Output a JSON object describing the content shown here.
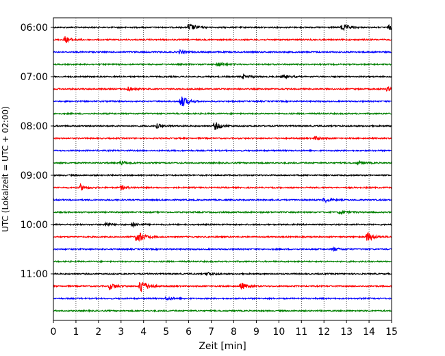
{
  "chart_data": {
    "type": "line",
    "subtype": "helicorder",
    "xlabel": "Zeit  [min]",
    "ylabel": "UTC (Lokalzeit = UTC + 02:00)",
    "xlim": [
      0,
      15
    ],
    "x_ticks": [
      "0",
      "1",
      "2",
      "3",
      "4",
      "5",
      "6",
      "7",
      "8",
      "9",
      "10",
      "11",
      "12",
      "13",
      "14",
      "15"
    ],
    "vertical_grid": "dotted",
    "trace_colors": [
      "#000000",
      "#ff0000",
      "#0000ff",
      "#008000"
    ],
    "trace_interval_min": 15,
    "y_tick_labels": [
      {
        "row": 0,
        "label": "06:00"
      },
      {
        "row": 4,
        "label": "07:00"
      },
      {
        "row": 8,
        "label": "08:00"
      },
      {
        "row": 12,
        "label": "09:00"
      },
      {
        "row": 16,
        "label": "10:00"
      },
      {
        "row": 20,
        "label": "11:00"
      }
    ],
    "traces": [
      {
        "row": 0,
        "color": "#000000",
        "events": [
          {
            "t": 6.0,
            "amp": 2.0
          },
          {
            "t": 12.8,
            "amp": 1.8
          },
          {
            "t": 14.9,
            "amp": 1.2
          }
        ]
      },
      {
        "row": 1,
        "color": "#ff0000",
        "events": [
          {
            "t": 0.5,
            "amp": 1.6
          }
        ]
      },
      {
        "row": 2,
        "color": "#0000ff",
        "events": [
          {
            "t": 5.6,
            "amp": 0.8
          }
        ]
      },
      {
        "row": 3,
        "color": "#008000",
        "events": [
          {
            "t": 7.3,
            "amp": 1.0
          }
        ]
      },
      {
        "row": 4,
        "color": "#000000",
        "events": [
          {
            "t": 8.4,
            "amp": 0.9
          },
          {
            "t": 10.2,
            "amp": 0.9
          }
        ]
      },
      {
        "row": 5,
        "color": "#ff0000",
        "events": [
          {
            "t": 3.3,
            "amp": 1.0
          },
          {
            "t": 14.8,
            "amp": 0.9
          }
        ]
      },
      {
        "row": 6,
        "color": "#0000ff",
        "events": [
          {
            "t": 5.65,
            "amp": 3.2
          }
        ]
      },
      {
        "row": 7,
        "color": "#008000",
        "events": []
      },
      {
        "row": 8,
        "color": "#000000",
        "events": [
          {
            "t": 7.15,
            "amp": 2.0
          },
          {
            "t": 4.6,
            "amp": 1.0
          }
        ]
      },
      {
        "row": 9,
        "color": "#ff0000",
        "events": [
          {
            "t": 11.6,
            "amp": 0.8
          }
        ]
      },
      {
        "row": 10,
        "color": "#0000ff",
        "events": []
      },
      {
        "row": 11,
        "color": "#008000",
        "events": [
          {
            "t": 3.0,
            "amp": 1.0
          },
          {
            "t": 13.5,
            "amp": 0.9
          }
        ]
      },
      {
        "row": 12,
        "color": "#000000",
        "events": []
      },
      {
        "row": 13,
        "color": "#ff0000",
        "events": [
          {
            "t": 1.2,
            "amp": 1.4
          },
          {
            "t": 3.0,
            "amp": 1.0
          }
        ]
      },
      {
        "row": 14,
        "color": "#0000ff",
        "events": [
          {
            "t": 12.0,
            "amp": 1.2
          }
        ]
      },
      {
        "row": 15,
        "color": "#008000",
        "events": [
          {
            "t": 12.7,
            "amp": 0.9
          }
        ]
      },
      {
        "row": 16,
        "color": "#000000",
        "events": [
          {
            "t": 2.3,
            "amp": 1.0
          },
          {
            "t": 3.5,
            "amp": 0.9
          }
        ]
      },
      {
        "row": 17,
        "color": "#ff0000",
        "events": [
          {
            "t": 3.7,
            "amp": 3.6
          },
          {
            "t": 13.9,
            "amp": 2.4
          }
        ]
      },
      {
        "row": 18,
        "color": "#0000ff",
        "events": [
          {
            "t": 12.4,
            "amp": 0.9
          }
        ]
      },
      {
        "row": 19,
        "color": "#008000",
        "events": []
      },
      {
        "row": 20,
        "color": "#000000",
        "events": [
          {
            "t": 6.8,
            "amp": 1.0
          }
        ]
      },
      {
        "row": 21,
        "color": "#ff0000",
        "events": [
          {
            "t": 2.5,
            "amp": 1.6
          },
          {
            "t": 3.85,
            "amp": 3.8
          },
          {
            "t": 8.3,
            "amp": 1.8
          }
        ]
      },
      {
        "row": 22,
        "color": "#0000ff",
        "events": [
          {
            "t": 5.0,
            "amp": 0.7
          }
        ]
      },
      {
        "row": 23,
        "color": "#008000",
        "events": []
      }
    ]
  }
}
